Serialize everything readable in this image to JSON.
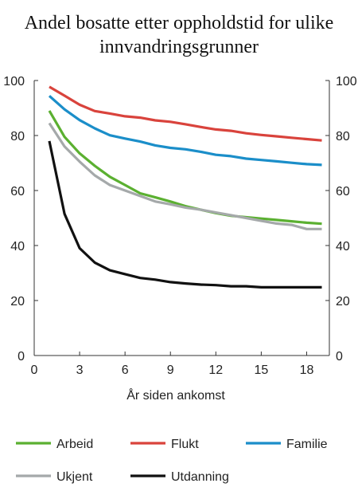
{
  "chart_data": {
    "type": "line",
    "title_lines": [
      "Andel bosatte etter oppholdstid for ulike",
      "innvandringsgrunner"
    ],
    "xlabel": "År siden ankomst",
    "ylabel": "",
    "xlim": [
      0,
      19.5
    ],
    "ylim": [
      0,
      100
    ],
    "x_ticks": [
      0,
      3,
      6,
      9,
      12,
      15,
      18
    ],
    "y_ticks": [
      0,
      20,
      40,
      60,
      80,
      100
    ],
    "grid": false,
    "y_axis_right": true,
    "x": [
      1,
      2,
      3,
      4,
      5,
      6,
      7,
      8,
      9,
      10,
      11,
      12,
      13,
      14,
      15,
      16,
      17,
      18,
      19
    ],
    "series": [
      {
        "name": "Arbeid",
        "color": "#5bb031",
        "values": [
          89,
          79.5,
          73.5,
          69,
          65,
          62,
          59,
          57.5,
          56,
          54.3,
          53,
          51.8,
          50.8,
          50.3,
          49.8,
          49.3,
          48.8,
          48.3,
          47.9
        ]
      },
      {
        "name": "Flukt",
        "color": "#d9433c",
        "values": [
          97.7,
          94.5,
          91.2,
          88.9,
          88,
          87,
          86.5,
          85.5,
          85,
          84.1,
          83.1,
          82.2,
          81.7,
          80.8,
          80.2,
          79.7,
          79.2,
          78.7,
          78.2
        ]
      },
      {
        "name": "Familie",
        "color": "#1b8ec9",
        "values": [
          94.4,
          89.5,
          85.6,
          82.6,
          80.1,
          78.9,
          77.8,
          76.4,
          75.5,
          75,
          74.1,
          73,
          72.5,
          71.6,
          71.1,
          70.6,
          70.1,
          69.6,
          69.3
        ]
      },
      {
        "name": "Ukjent",
        "color": "#a5a9aa",
        "values": [
          84.5,
          76,
          70.5,
          65.5,
          62,
          60,
          58,
          56,
          55,
          53.8,
          53,
          52,
          51,
          50,
          49,
          48,
          47.5,
          46,
          46
        ]
      },
      {
        "name": "Utdanning",
        "color": "#111111",
        "values": [
          78,
          51.5,
          39,
          33.8,
          31,
          29.6,
          28.2,
          27.6,
          26.7,
          26.2,
          25.8,
          25.6,
          25.2,
          25.2,
          24.8,
          24.8,
          24.8,
          24.8,
          24.8
        ]
      }
    ],
    "legend": {
      "placement": "bottom",
      "rows": [
        [
          "Arbeid",
          "Flukt",
          "Familie"
        ],
        [
          "Ukjent",
          "Utdanning"
        ]
      ]
    }
  }
}
